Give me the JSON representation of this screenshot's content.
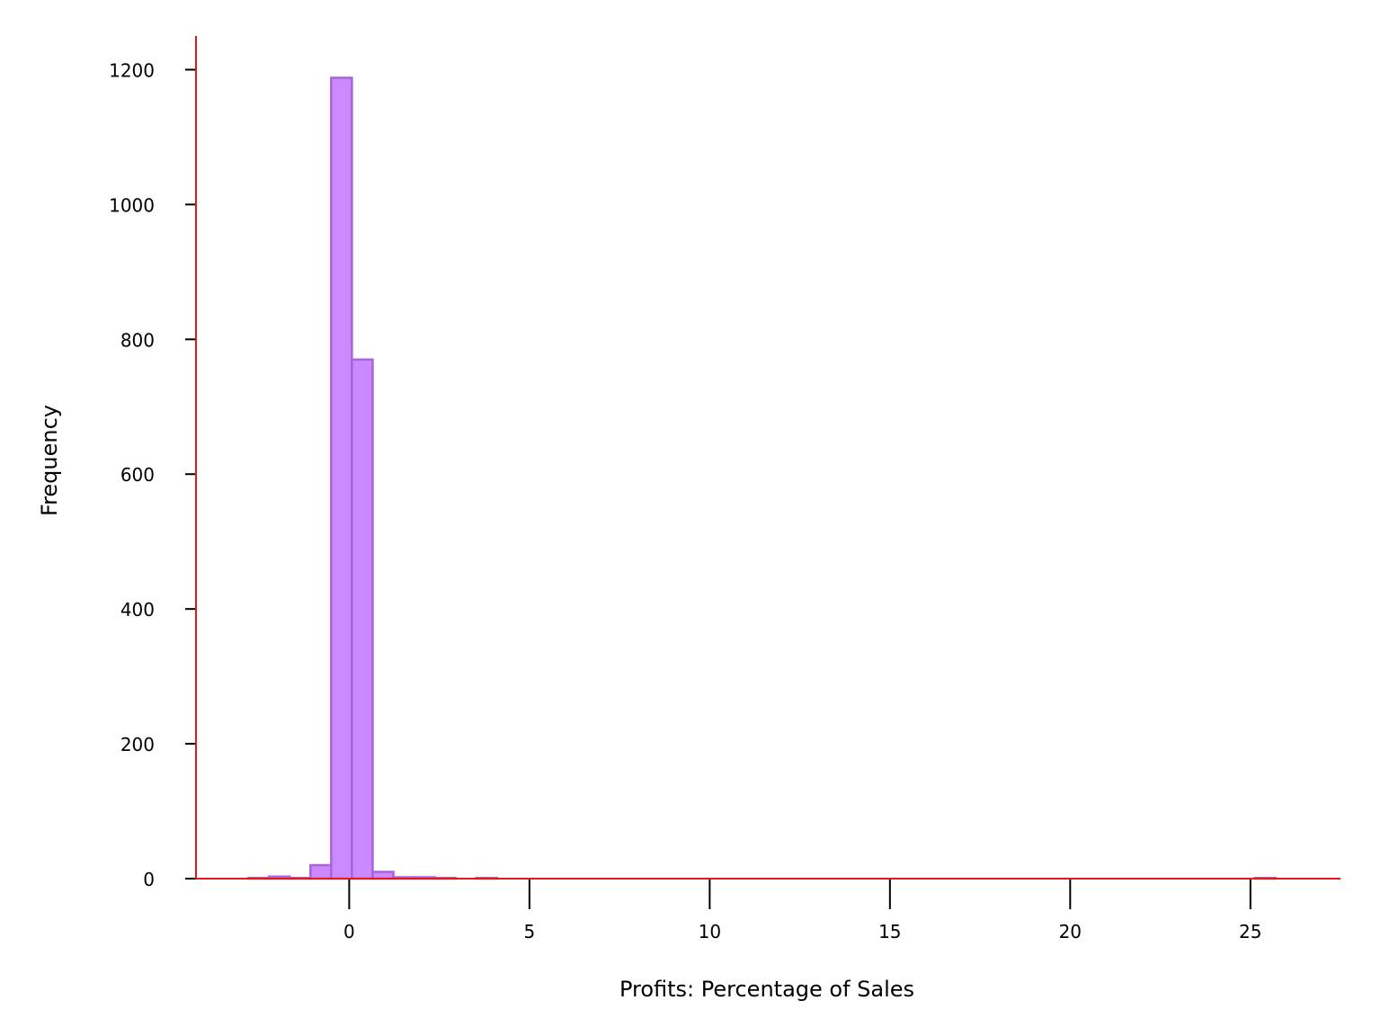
{
  "chart_data": {
    "type": "bar",
    "subtype": "histogram",
    "title": "",
    "xlabel": "Profits: Percentage of Sales",
    "ylabel": "Frequency",
    "xlim": [
      -4.25,
      27.5
    ],
    "ylim": [
      0,
      1250
    ],
    "xticks": [
      0,
      5,
      10,
      15,
      20,
      25
    ],
    "yticks": [
      0,
      200,
      400,
      600,
      800,
      1000,
      1200
    ],
    "grid": false,
    "legend": false,
    "bin_width": 0.575,
    "bins": [
      {
        "x0": -2.8,
        "x1": -2.225,
        "count": 1
      },
      {
        "x0": -2.225,
        "x1": -1.65,
        "count": 3
      },
      {
        "x0": -1.65,
        "x1": -1.075,
        "count": 1
      },
      {
        "x0": -1.075,
        "x1": -0.5,
        "count": 20
      },
      {
        "x0": -0.5,
        "x1": 0.075,
        "count": 1188
      },
      {
        "x0": 0.075,
        "x1": 0.65,
        "count": 770
      },
      {
        "x0": 0.65,
        "x1": 1.225,
        "count": 10
      },
      {
        "x0": 1.225,
        "x1": 1.8,
        "count": 2
      },
      {
        "x0": 1.8,
        "x1": 2.375,
        "count": 2
      },
      {
        "x0": 2.375,
        "x1": 2.95,
        "count": 1
      },
      {
        "x0": 2.95,
        "x1": 3.525,
        "count": 0
      },
      {
        "x0": 3.525,
        "x1": 4.1,
        "count": 1
      },
      {
        "x0": 25.125,
        "x1": 25.7,
        "count": 1
      }
    ],
    "colors": {
      "bar_fill": "#cc88ff",
      "bar_edge": "#a864db",
      "left_spine": "#e31a1c",
      "bottom_spine": "#e31a1c",
      "tick_color": "#000000"
    }
  }
}
